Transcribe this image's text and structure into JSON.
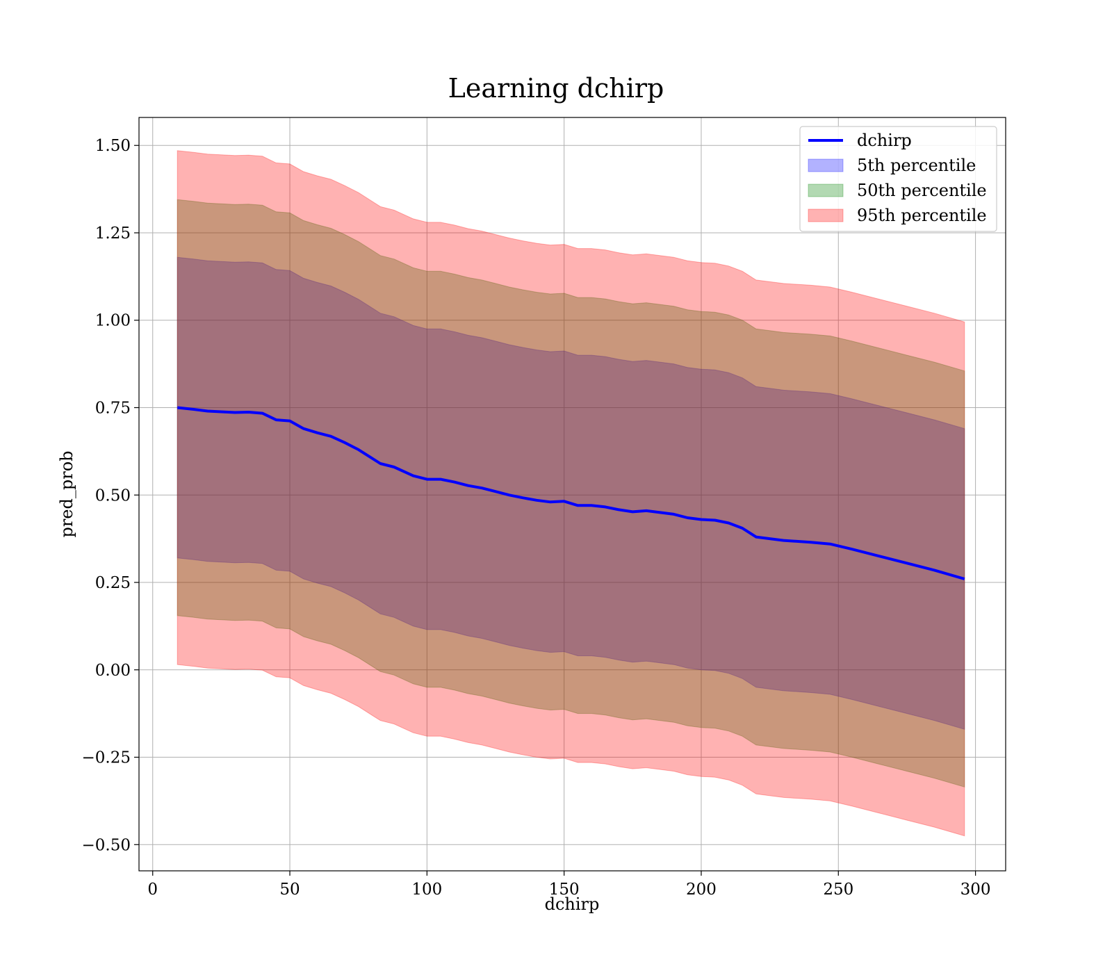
{
  "chart_data": {
    "type": "area",
    "title": "Learning dchirp",
    "xlabel": "dchirp",
    "ylabel": "pred_prob",
    "xlim": [
      -5,
      311
    ],
    "ylim": [
      -0.575,
      1.58
    ],
    "grid": true,
    "legend_position": "top-right",
    "x_ticks": [
      0,
      50,
      100,
      150,
      200,
      250,
      300
    ],
    "x_tick_labels": [
      "0",
      "50",
      "100",
      "150",
      "200",
      "250",
      "300"
    ],
    "y_ticks": [
      1.5,
      1.25,
      1.0,
      0.75,
      0.5,
      0.25,
      0.0,
      -0.25,
      -0.5
    ],
    "y_tick_labels": [
      "1.50",
      "1.25",
      "1.00",
      "0.75",
      "0.50",
      "0.25",
      "0.00",
      "−0.25",
      "−0.50"
    ],
    "x": [
      9,
      15,
      20,
      25,
      30,
      35,
      40,
      45,
      50,
      55,
      60,
      65,
      70,
      75,
      80,
      83,
      88,
      95,
      100,
      105,
      110,
      115,
      120,
      125,
      130,
      135,
      140,
      145,
      150,
      155,
      160,
      165,
      170,
      175,
      180,
      185,
      190,
      195,
      200,
      205,
      210,
      215,
      220,
      225,
      230,
      240,
      247,
      255,
      265,
      275,
      285,
      296
    ],
    "series": [
      {
        "name": "dchirp",
        "color": "#0000ff",
        "values": [
          0.75,
          0.745,
          0.74,
          0.738,
          0.736,
          0.737,
          0.734,
          0.715,
          0.712,
          0.69,
          0.678,
          0.668,
          0.65,
          0.63,
          0.605,
          0.59,
          0.58,
          0.555,
          0.545,
          0.545,
          0.537,
          0.527,
          0.52,
          0.51,
          0.5,
          0.492,
          0.485,
          0.48,
          0.482,
          0.47,
          0.47,
          0.466,
          0.458,
          0.452,
          0.455,
          0.45,
          0.445,
          0.435,
          0.43,
          0.428,
          0.42,
          0.405,
          0.38,
          0.375,
          0.37,
          0.365,
          0.36,
          0.345,
          0.325,
          0.305,
          0.285,
          0.26
        ]
      },
      {
        "name": "5th percentile",
        "color": "#0000ff",
        "opacity": 0.3,
        "offset": 0.43
      },
      {
        "name": "50th percentile",
        "color": "#008000",
        "opacity": 0.3,
        "offset": 0.595
      },
      {
        "name": "95th percentile",
        "color": "#ff0000",
        "opacity": 0.3,
        "offset": 0.735
      }
    ]
  }
}
